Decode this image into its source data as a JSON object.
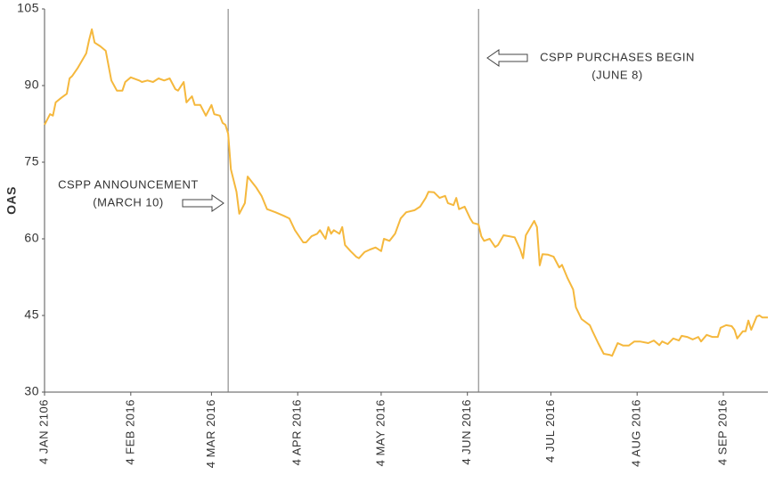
{
  "chart_data": {
    "type": "line",
    "y_label": "OAS",
    "x": [
      0,
      2,
      3,
      4,
      6,
      8,
      9,
      10,
      12,
      15,
      16,
      17,
      18,
      20,
      22,
      24,
      26,
      28,
      29,
      31,
      34,
      35,
      37,
      39,
      41,
      43,
      45,
      47,
      48,
      50,
      51,
      53,
      54,
      56,
      58,
      60,
      61,
      63,
      64,
      65,
      66,
      67,
      69,
      70,
      72,
      73,
      76,
      78,
      80,
      83,
      86,
      88,
      90,
      93,
      94,
      96,
      98,
      99,
      101,
      102,
      103,
      104,
      106,
      107,
      108,
      110,
      112,
      113,
      115,
      117,
      119,
      121,
      122,
      124,
      126,
      128,
      130,
      133,
      135,
      137,
      138,
      140,
      142,
      144,
      145,
      147,
      148,
      149,
      151,
      153,
      154,
      156,
      157,
      158,
      160,
      162,
      163,
      165,
      167,
      169,
      171,
      172,
      173,
      176,
      177,
      178,
      179,
      181,
      183,
      185,
      186,
      188,
      190,
      191,
      193,
      196,
      197,
      199,
      201,
      203,
      204,
      206,
      208,
      210,
      212,
      214,
      217,
      219,
      221,
      222,
      224,
      226,
      228,
      229,
      231,
      233,
      235,
      236,
      238,
      240,
      242,
      243,
      245,
      247,
      248,
      249,
      251,
      252,
      253,
      254,
      256,
      257,
      258,
      260
    ],
    "series": [
      {
        "name": "OAS",
        "color": "#f5b83d",
        "values": [
          82.3,
          84.4,
          84.1,
          86.7,
          87.6,
          88.4,
          91.4,
          91.9,
          93.5,
          96.3,
          98.9,
          101.0,
          98.4,
          97.7,
          96.8,
          91.0,
          89.0,
          89.0,
          90.7,
          91.6,
          91.0,
          90.7,
          91.0,
          90.7,
          91.4,
          91.0,
          91.4,
          89.3,
          89.0,
          90.7,
          86.7,
          87.9,
          86.2,
          86.2,
          84.1,
          86.2,
          84.4,
          84.1,
          82.7,
          82.3,
          80.6,
          73.6,
          69.2,
          64.9,
          67.0,
          72.2,
          70.1,
          68.4,
          65.8,
          65.2,
          64.5,
          64.0,
          61.7,
          59.3,
          59.3,
          60.5,
          61.0,
          61.7,
          60.0,
          62.3,
          61.0,
          61.7,
          61.0,
          62.3,
          58.8,
          57.6,
          56.5,
          56.2,
          57.4,
          57.9,
          58.3,
          57.6,
          60.0,
          59.6,
          61.0,
          64.0,
          65.2,
          65.6,
          66.3,
          68.0,
          69.2,
          69.1,
          68.0,
          68.4,
          67.0,
          66.6,
          68.0,
          65.8,
          66.3,
          64.0,
          63.1,
          62.8,
          60.5,
          59.6,
          60.0,
          58.4,
          58.8,
          60.7,
          60.5,
          60.3,
          57.9,
          56.2,
          60.7,
          63.5,
          62.3,
          54.8,
          57.0,
          56.9,
          56.5,
          54.4,
          54.9,
          52.3,
          50.1,
          46.6,
          44.3,
          43.1,
          41.9,
          39.6,
          37.5,
          37.3,
          37.1,
          39.6,
          39.1,
          39.1,
          39.9,
          39.9,
          39.6,
          40.1,
          39.2,
          39.9,
          39.4,
          40.5,
          40.1,
          41.0,
          40.8,
          40.3,
          40.8,
          39.9,
          41.2,
          40.8,
          40.8,
          42.6,
          43.1,
          42.9,
          42.2,
          40.5,
          41.9,
          41.9,
          44.0,
          42.2,
          44.8,
          45.0,
          44.6,
          44.6
        ]
      }
    ],
    "xlim": [
      0,
      260
    ],
    "xticks": [
      {
        "value": 0,
        "label": "4 JAN 2106"
      },
      {
        "value": 31,
        "label": "4 FEB 2016"
      },
      {
        "value": 60,
        "label": "4 MAR 2016"
      },
      {
        "value": 91,
        "label": "4 APR 2016"
      },
      {
        "value": 121,
        "label": "4 MAY 2016"
      },
      {
        "value": 152,
        "label": "4 JUN 2016"
      },
      {
        "value": 182,
        "label": "4 JUL 2016"
      },
      {
        "value": 213,
        "label": "4 AUG 2016"
      },
      {
        "value": 244,
        "label": "4 SEP 2016"
      }
    ],
    "ylim": [
      30,
      105
    ],
    "yticks": [
      30,
      45,
      60,
      75,
      90,
      105
    ],
    "annotations": [
      {
        "x": 66,
        "text": [
          "CSPP ANNOUNCEMENT",
          "(MARCH 10)"
        ]
      },
      {
        "x": 156,
        "text": [
          "CSPP PURCHASES BEGIN",
          "(JUNE 8)"
        ]
      }
    ]
  }
}
